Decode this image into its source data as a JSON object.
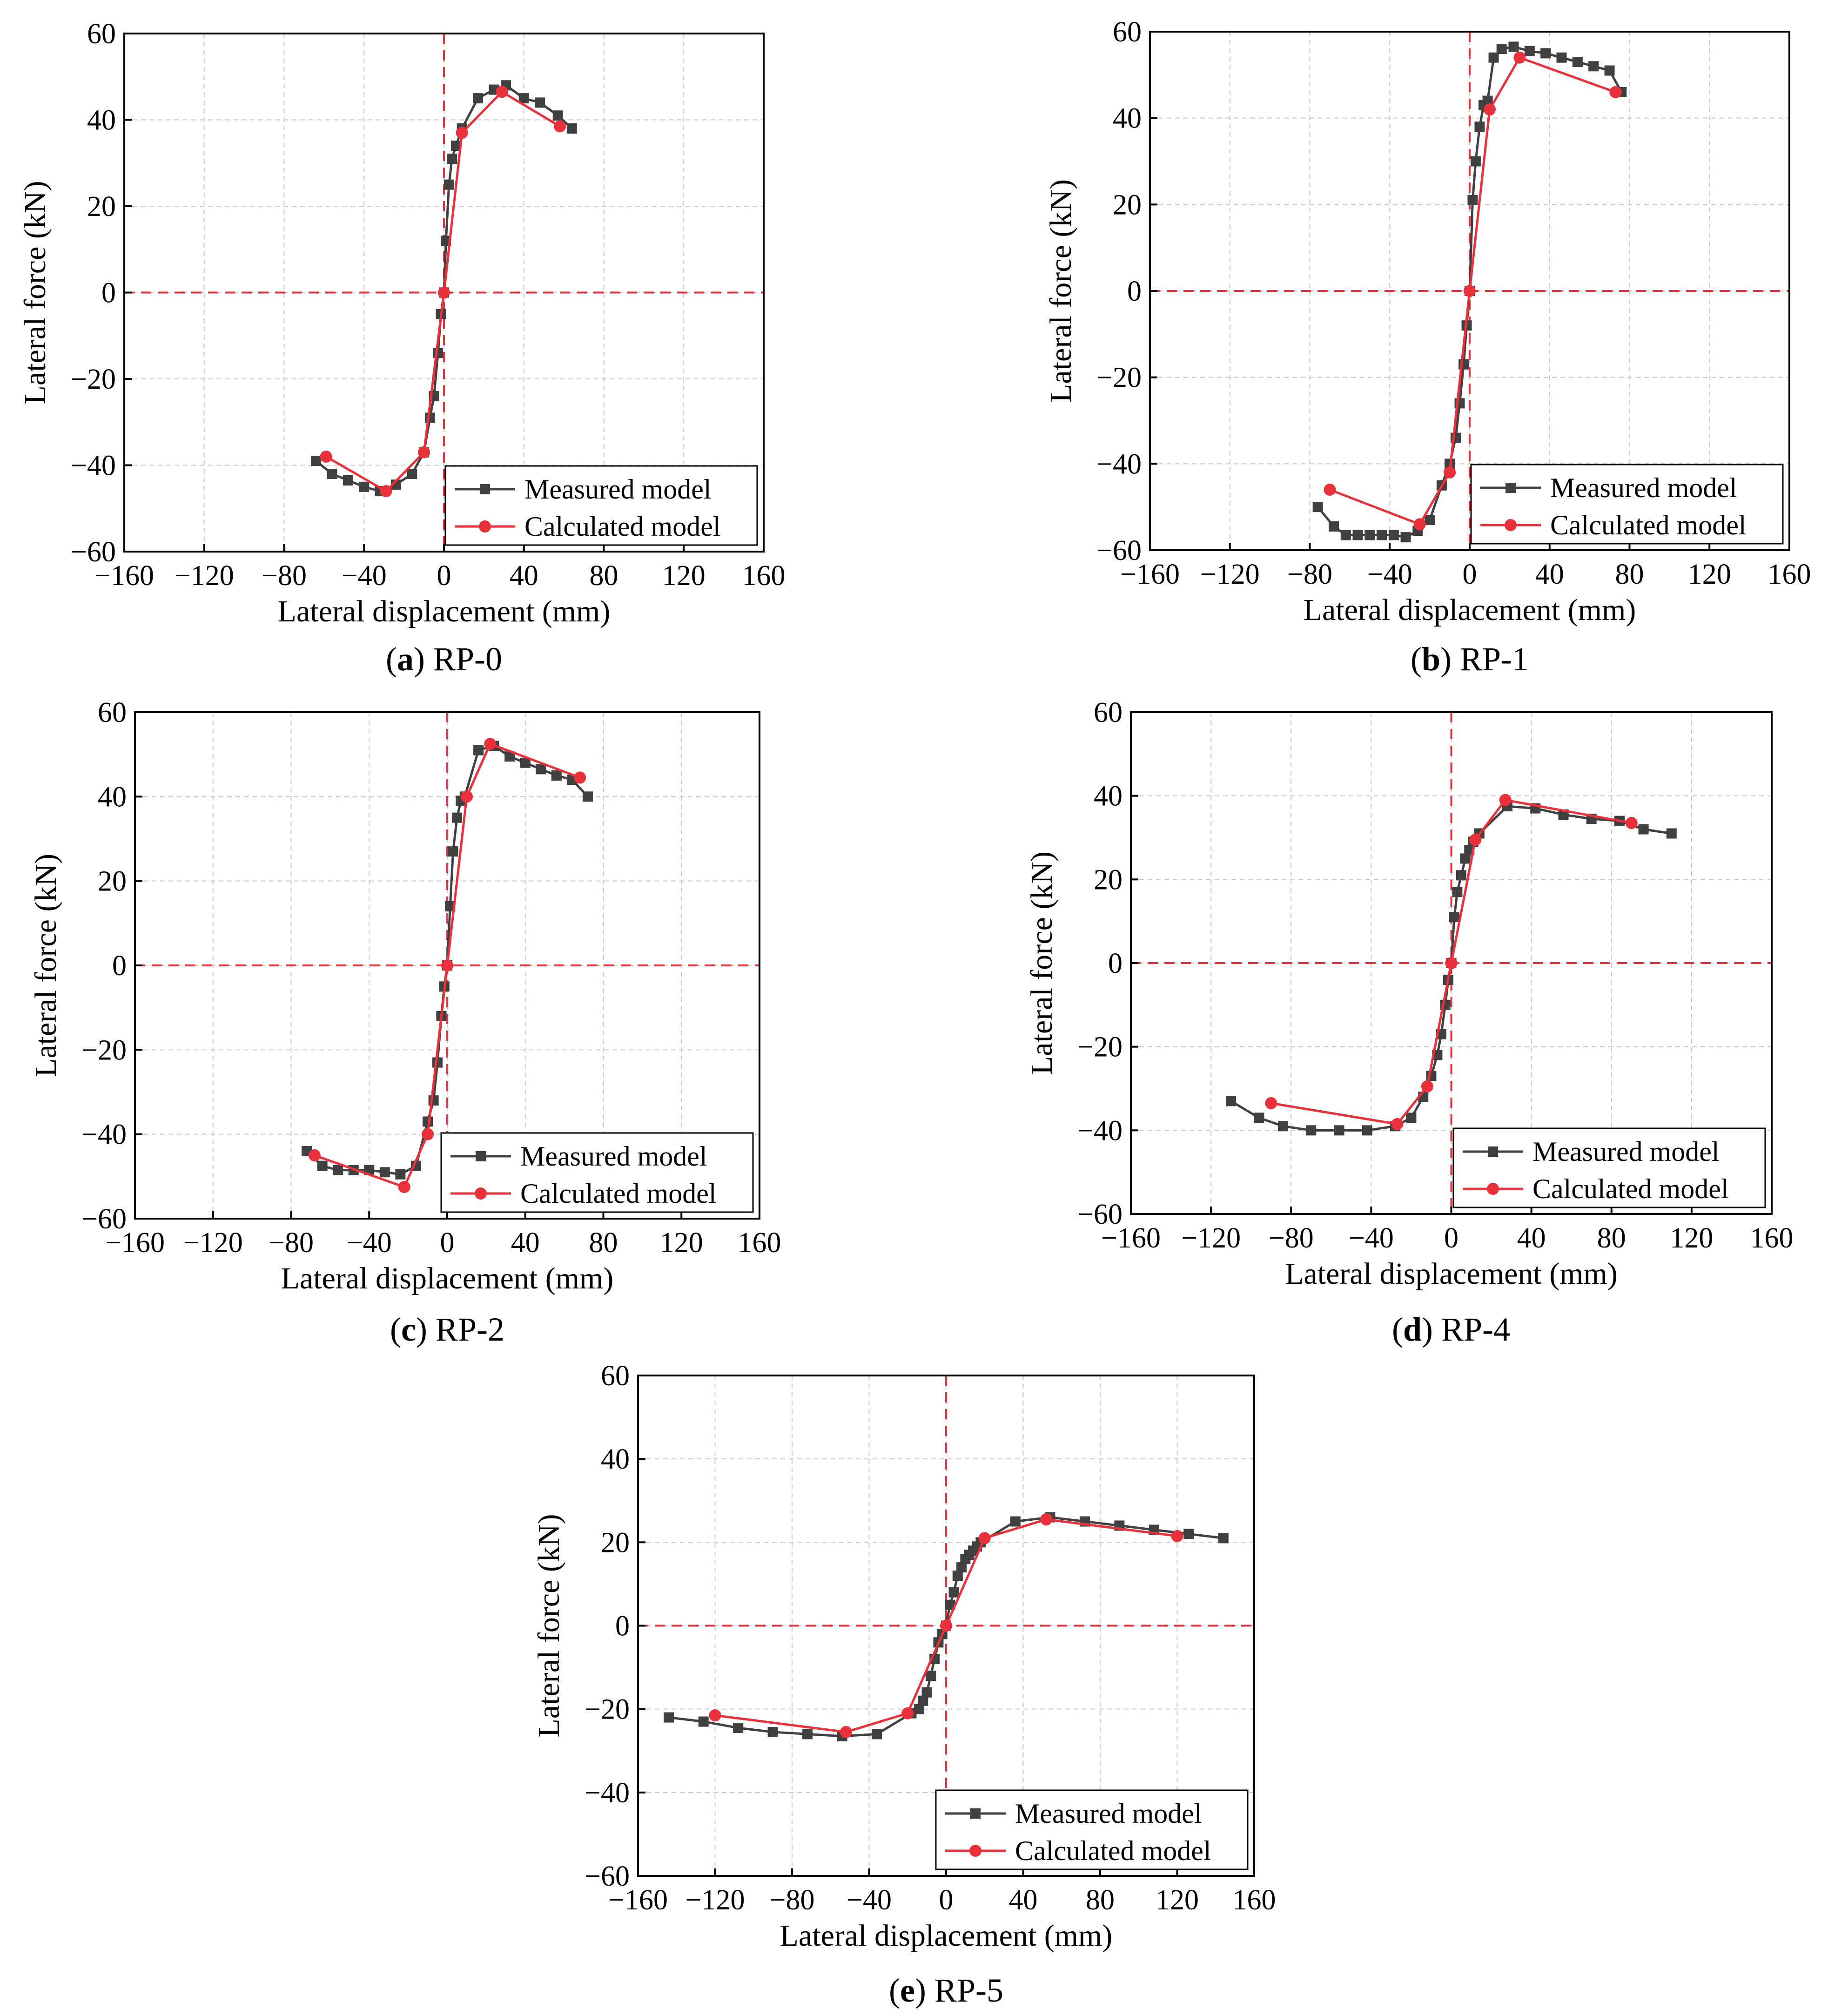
{
  "figure": {
    "colors": {
      "measured": "#404040",
      "calculated": "#e8313a",
      "reference": "#e8313a",
      "grid": "#c8c8c8",
      "axis": "#000000"
    }
  },
  "chart_data": [
    {
      "id": "a",
      "caption_letter": "a",
      "caption_text": " RP-0",
      "type": "line",
      "xlabel": "Lateral displacement (mm)",
      "ylabel": "Lateral force (kN)",
      "xlim": [
        -160,
        160
      ],
      "ylim": [
        -60,
        60
      ],
      "xticks": [
        "−160",
        "−120",
        "−80",
        "−40",
        "0",
        "40",
        "80",
        "120",
        "160"
      ],
      "yticks": [
        "60",
        "40",
        "20",
        "0",
        "−20",
        "−40",
        "−60"
      ],
      "legend": [
        "Measured model",
        "Calculated model"
      ],
      "series": [
        {
          "name": "Measured model",
          "x": [
            -64,
            -56,
            -48,
            -40,
            -32,
            -24,
            -16,
            -10,
            -7,
            -5,
            -3,
            -1.5,
            0,
            1,
            2.5,
            4,
            6,
            9,
            17,
            25,
            31,
            40,
            48,
            57,
            64
          ],
          "y": [
            -39,
            -42,
            -43.5,
            -45,
            -46,
            -44.5,
            -42,
            -37,
            -29,
            -24,
            -14,
            -5,
            0,
            12,
            25,
            31,
            34,
            38,
            45,
            47,
            48,
            45,
            44,
            41,
            38
          ]
        },
        {
          "name": "Calculated model",
          "x": [
            -59,
            -29,
            -10,
            0,
            9,
            29,
            58
          ],
          "y": [
            -38,
            -46,
            -37,
            0,
            37,
            46.5,
            38.5
          ]
        }
      ]
    },
    {
      "id": "b",
      "caption_letter": "b",
      "caption_text": " RP-1",
      "type": "line",
      "xlabel": "Lateral displacement (mm)",
      "ylabel": "Lateral force (kN)",
      "xlim": [
        -160,
        160
      ],
      "ylim": [
        -60,
        60
      ],
      "xticks": [
        "−160",
        "−120",
        "−80",
        "−40",
        "0",
        "40",
        "80",
        "120",
        "160"
      ],
      "yticks": [
        "60",
        "40",
        "20",
        "0",
        "−20",
        "−40",
        "−60"
      ],
      "legend": [
        "Measured model",
        "Calculated model"
      ],
      "series": [
        {
          "name": "Measured model",
          "x": [
            -76,
            -68,
            -62,
            -56,
            -50,
            -44,
            -38,
            -32,
            -26,
            -20,
            -14,
            -10,
            -7,
            -5,
            -3,
            -1.5,
            0,
            1.5,
            3,
            5,
            7,
            9,
            12,
            16,
            22,
            30,
            38,
            46,
            54,
            62,
            70,
            76
          ],
          "y": [
            -50,
            -54.5,
            -56.5,
            -56.5,
            -56.5,
            -56.5,
            -56.5,
            -57,
            -55.5,
            -53,
            -45,
            -40,
            -34,
            -26,
            -17,
            -8,
            0,
            21,
            30,
            38,
            43,
            44,
            54,
            56,
            56.5,
            55.5,
            55,
            54,
            53,
            52,
            51,
            46
          ]
        },
        {
          "name": "Calculated model",
          "x": [
            -70,
            -25,
            -10,
            0,
            10,
            25,
            73
          ],
          "y": [
            -46,
            -54,
            -42,
            0,
            42,
            54,
            46
          ]
        }
      ]
    },
    {
      "id": "c",
      "caption_letter": "c",
      "caption_text": " RP-2",
      "type": "line",
      "xlabel": "Lateral displacement (mm)",
      "ylabel": "Lateral force (kN)",
      "xlim": [
        -160,
        160
      ],
      "ylim": [
        -60,
        60
      ],
      "xticks": [
        "−160",
        "−120",
        "−80",
        "−40",
        "0",
        "40",
        "80",
        "120",
        "160"
      ],
      "yticks": [
        "60",
        "40",
        "20",
        "0",
        "−20",
        "−40",
        "−60"
      ],
      "legend": [
        "Measured model",
        "Calculated model"
      ],
      "series": [
        {
          "name": "Measured model",
          "x": [
            -72,
            -64,
            -56,
            -48,
            -40,
            -32,
            -24,
            -16,
            -10,
            -7,
            -5,
            -3,
            -1.5,
            0,
            1.5,
            3,
            5,
            7,
            9,
            16,
            24,
            32,
            40,
            48,
            56,
            64,
            72
          ],
          "y": [
            -44,
            -47.5,
            -48.5,
            -48.5,
            -48.5,
            -49,
            -49.5,
            -47.5,
            -37,
            -32,
            -23,
            -12,
            -5,
            0,
            14,
            27,
            35,
            39,
            40,
            51,
            52,
            49.5,
            48,
            46.5,
            45,
            44,
            40
          ]
        },
        {
          "name": "Calculated model",
          "x": [
            -68,
            -22,
            -10,
            0,
            10,
            22,
            68
          ],
          "y": [
            -45,
            -52.5,
            -40,
            0,
            40,
            52.5,
            44.5
          ]
        }
      ]
    },
    {
      "id": "d",
      "caption_letter": "d",
      "caption_text": " RP-4",
      "type": "line",
      "xlabel": "Lateral displacement (mm)",
      "ylabel": "Lateral force (kN)",
      "xlim": [
        -160,
        160
      ],
      "ylim": [
        -60,
        60
      ],
      "xticks": [
        "−160",
        "−120",
        "−80",
        "−40",
        "0",
        "40",
        "80",
        "120",
        "160"
      ],
      "yticks": [
        "60",
        "40",
        "20",
        "0",
        "−20",
        "−40",
        "−60"
      ],
      "legend": [
        "Measured model",
        "Calculated model"
      ],
      "series": [
        {
          "name": "Measured model",
          "x": [
            -110,
            -96,
            -84,
            -70,
            -56,
            -42,
            -28,
            -20,
            -14,
            -10,
            -7,
            -5,
            -3,
            -1.5,
            0,
            1.5,
            3,
            5,
            7,
            9,
            11,
            14,
            28,
            42,
            56,
            70,
            84,
            96,
            110
          ],
          "y": [
            -33,
            -37,
            -39,
            -40,
            -40,
            -40,
            -39,
            -37,
            -32,
            -27,
            -22,
            -17,
            -10,
            -4,
            0,
            11,
            17,
            21,
            25,
            27,
            29,
            31,
            37.5,
            37,
            35.5,
            34.5,
            34,
            32,
            31
          ]
        },
        {
          "name": "Calculated model",
          "x": [
            -90,
            -27,
            -12,
            0,
            12,
            27,
            90
          ],
          "y": [
            -33.5,
            -38.5,
            -29.5,
            0,
            29.5,
            39,
            33.5
          ]
        }
      ]
    },
    {
      "id": "e",
      "caption_letter": "e",
      "caption_text": " RP-5",
      "type": "line",
      "xlabel": "Lateral displacement (mm)",
      "ylabel": "Lateral force (kN)",
      "xlim": [
        -160,
        160
      ],
      "ylim": [
        -60,
        60
      ],
      "xticks": [
        "−160",
        "−120",
        "−80",
        "−40",
        "0",
        "40",
        "80",
        "120",
        "160"
      ],
      "yticks": [
        "60",
        "40",
        "20",
        "0",
        "−20",
        "−40",
        "−60"
      ],
      "legend": [
        "Measured model",
        "Calculated model"
      ],
      "series": [
        {
          "name": "Measured model",
          "x": [
            -144,
            -126,
            -108,
            -90,
            -72,
            -54,
            -36,
            -18,
            -14,
            -12,
            -10,
            -8,
            -6,
            -4,
            -2,
            0,
            2,
            4,
            6,
            8,
            10,
            12,
            14,
            16,
            18,
            36,
            54,
            72,
            90,
            108,
            126,
            144
          ],
          "y": [
            -22,
            -23,
            -24.5,
            -25.5,
            -26,
            -26.5,
            -26,
            -21,
            -20,
            -18,
            -16,
            -12,
            -8,
            -4,
            -2,
            0,
            5,
            8,
            12,
            14,
            16,
            17,
            18,
            19,
            20,
            25,
            26,
            25,
            24,
            23,
            22,
            21
          ]
        },
        {
          "name": "Calculated model",
          "x": [
            -120,
            -52,
            -20,
            0,
            20,
            52,
            120
          ],
          "y": [
            -21.5,
            -25.5,
            -21,
            0,
            21,
            25.5,
            21.5
          ]
        }
      ]
    }
  ]
}
